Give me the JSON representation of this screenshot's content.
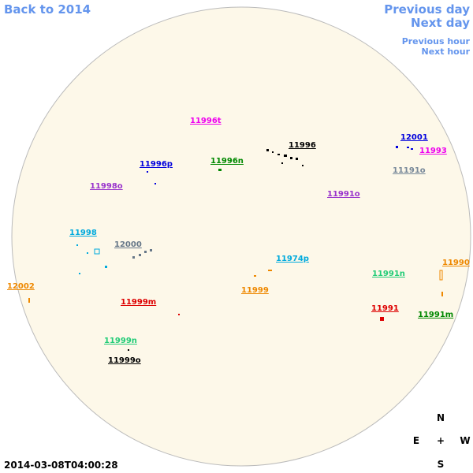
{
  "navigation": {
    "back": "Back to 2014",
    "previous_day": "Previous day",
    "next_day": "Next day",
    "previous_hour": "Previous hour",
    "next_hour": "Next hour"
  },
  "regions": [
    {
      "label": "11996t",
      "color": "#ee00ee"
    },
    {
      "label": "11996",
      "color": "#000000"
    },
    {
      "label": "12001",
      "color": "#0000dd"
    },
    {
      "label": "11993",
      "color": "#ee00ee"
    },
    {
      "label": "11191o",
      "color": "#778899"
    },
    {
      "label": "11996p",
      "color": "#0000dd"
    },
    {
      "label": "11996n",
      "color": "#008800"
    },
    {
      "label": "11998o",
      "color": "#9933cc"
    },
    {
      "label": "11991o",
      "color": "#9933cc"
    },
    {
      "label": "11998",
      "color": "#00aadd"
    },
    {
      "label": "12000",
      "color": "#667788"
    },
    {
      "label": "11974p",
      "color": "#00aadd"
    },
    {
      "label": "11990",
      "color": "#ee8800"
    },
    {
      "label": "11991n",
      "color": "#22cc77"
    },
    {
      "label": "12002",
      "color": "#ee8800"
    },
    {
      "label": "11999",
      "color": "#ee8800"
    },
    {
      "label": "11999m",
      "color": "#dd0000"
    },
    {
      "label": "11991",
      "color": "#dd0000"
    },
    {
      "label": "11991m",
      "color": "#008800"
    },
    {
      "label": "11999n",
      "color": "#22cc77"
    },
    {
      "label": "11999o",
      "color": "#000000"
    }
  ],
  "compass": {
    "north": "N",
    "east": "E",
    "center": "+",
    "west": "W",
    "south": "S"
  },
  "timestamp": "2014-03-08T04:00:28"
}
